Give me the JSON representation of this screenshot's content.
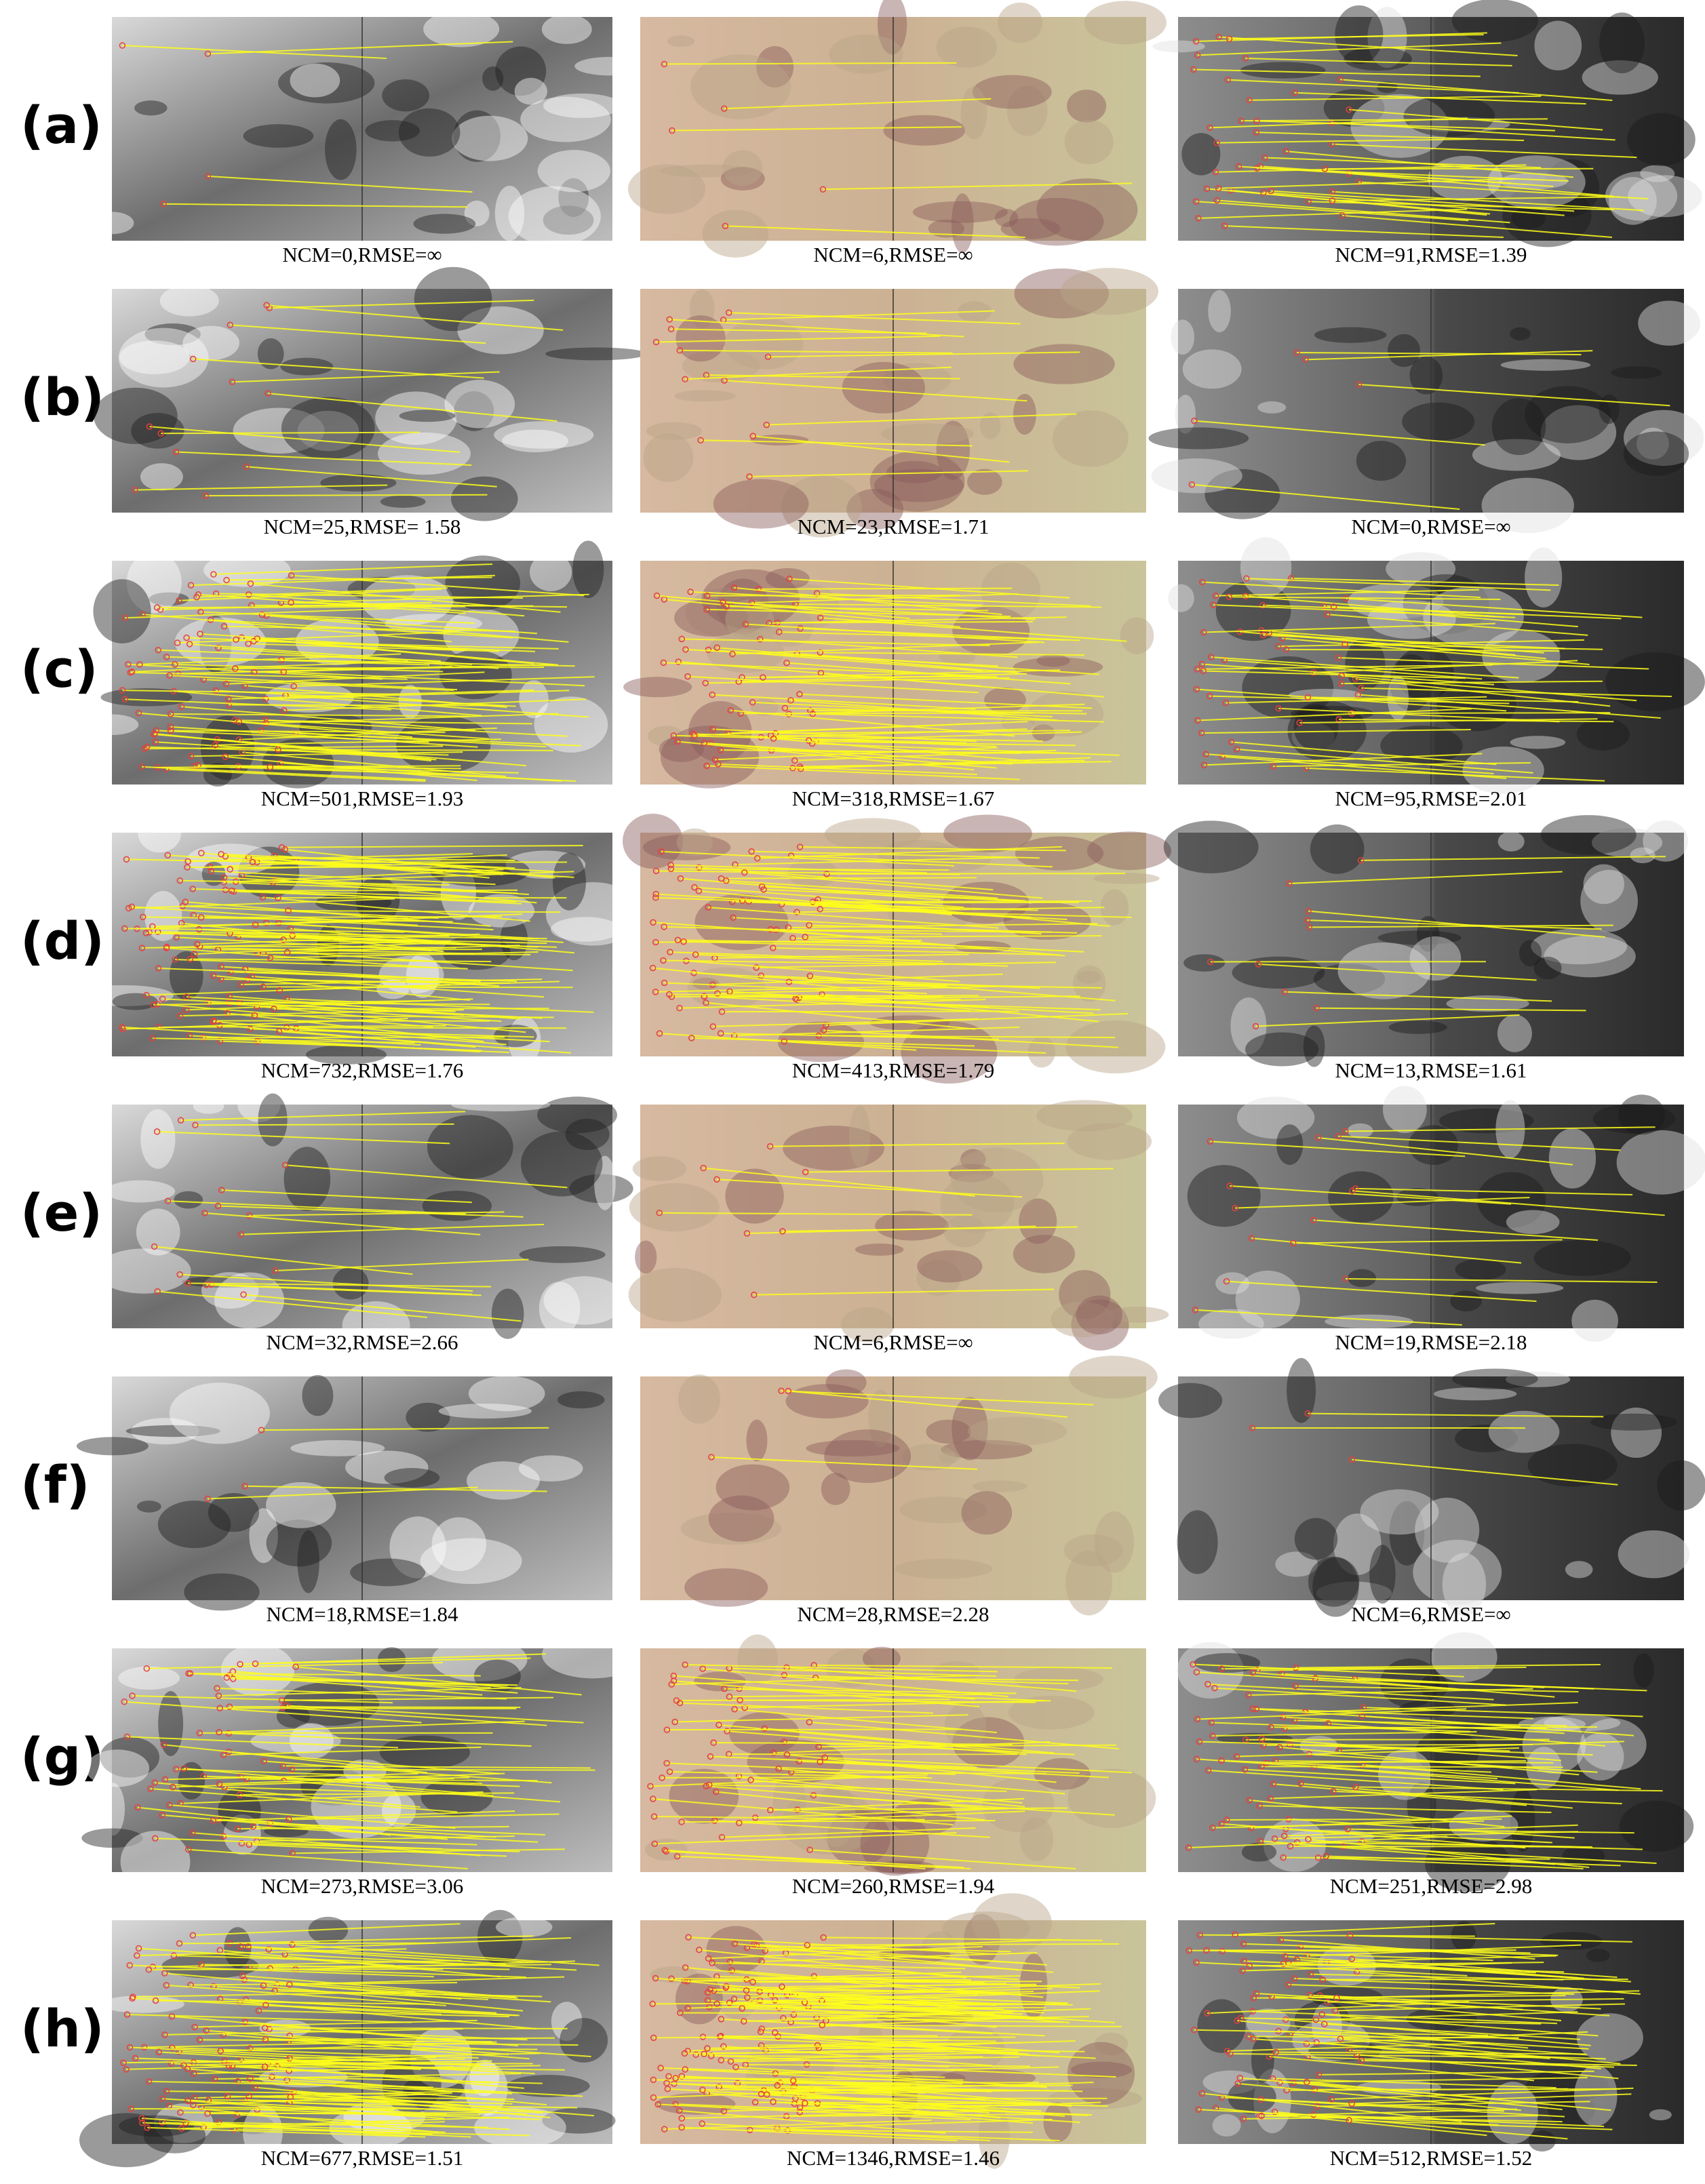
{
  "rows": [
    {
      "label": "(a)",
      "captions": [
        "NCM=0,RMSE=∞",
        "NCM=6,RMSE=∞",
        "NCM=91,RMSE=1.39"
      ]
    },
    {
      "label": "(b)",
      "captions": [
        "NCM=25,RMSE= 1.58",
        "NCM=23,RMSE=1.71",
        "NCM=0,RMSE=∞"
      ]
    },
    {
      "label": "(c)",
      "captions": [
        "NCM=501,RMSE=1.93",
        "NCM=318,RMSE=1.67",
        "NCM=95,RMSE=2.01"
      ]
    },
    {
      "label": "(d)",
      "captions": [
        "NCM=732,RMSE=1.76",
        "NCM=413,RMSE=1.79",
        "NCM=13,RMSE=1.61"
      ]
    },
    {
      "label": "(e)",
      "captions": [
        "NCM=32,RMSE=2.66",
        "NCM=6,RMSE=∞",
        "NCM=19,RMSE=2.18"
      ]
    },
    {
      "label": "(f)",
      "captions": [
        "NCM=18,RMSE=1.84",
        "NCM=28,RMSE=2.28",
        "NCM=6,RMSE=∞"
      ]
    },
    {
      "label": "(g)",
      "captions": [
        "NCM=273,RMSE=3.06",
        "NCM=260,RMSE=1.94",
        "NCM=251,RMSE=2.98"
      ]
    },
    {
      "label": "(h)",
      "captions": [
        "NCM=677,RMSE=1.51",
        "NCM=1346,RMSE=1.46",
        "NCM=512,RMSE=1.52"
      ]
    }
  ]
}
